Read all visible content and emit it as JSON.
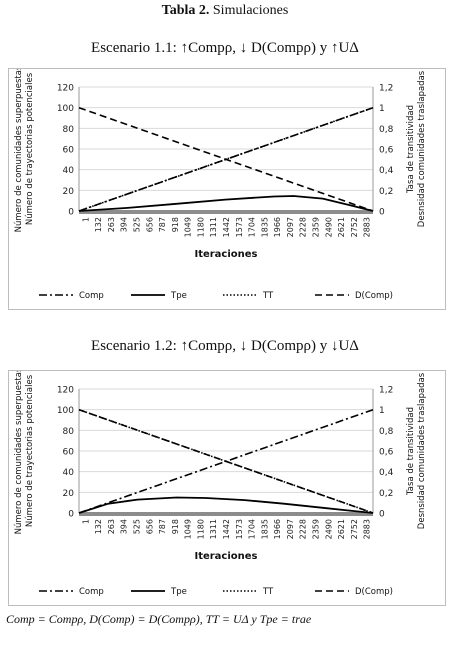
{
  "document": {
    "table_label": "Tabla 2.",
    "table_title": "Simulaciones",
    "footnote": "Comp = Compρ, D(Comp) = D(Compρ), TT = UΔ y Tpe = trae"
  },
  "scenarios": [
    {
      "title": "Escenario 1.1: ↑Compρ, ↓ D(Compρ) y ↑UΔ"
    },
    {
      "title": "Escenario 1.2: ↑Compρ, ↓ D(Compρ) y ↓UΔ"
    }
  ],
  "chart_data": [
    {
      "type": "line",
      "xlabel": "Iteraciones",
      "ylabel_left": [
        "Número de comunidades superpuestas",
        "Número de trayectorias potenciales"
      ],
      "ylabel_right": [
        "Tasa de transitividad",
        "Desnsidad comunidades traslapadas"
      ],
      "ylim_left": [
        0,
        120
      ],
      "yticks_left": [
        "0",
        "20",
        "40",
        "60",
        "80",
        "100",
        "120"
      ],
      "ylim_right": [
        0,
        1.2
      ],
      "yticks_right": [
        "0",
        "0,2",
        "0,4",
        "0,6",
        "0,8",
        "1",
        "1,2"
      ],
      "xlim": [
        1,
        3014
      ],
      "xticks": [
        "1",
        "132",
        "263",
        "394",
        "525",
        "656",
        "787",
        "918",
        "1049",
        "1180",
        "1311",
        "1442",
        "1573",
        "1704",
        "1835",
        "1966",
        "2097",
        "2228",
        "2359",
        "2490",
        "2621",
        "2752",
        "2883"
      ],
      "grid": "horizontal",
      "legend_position": "bottom",
      "series": [
        {
          "name": "Comp",
          "axis": "left",
          "style": "dashdot",
          "x": [
            1,
            3014
          ],
          "y": [
            0,
            100
          ]
        },
        {
          "name": "Tpe",
          "axis": "left",
          "style": "solid",
          "x": [
            1,
            500,
            1000,
            1500,
            2000,
            2200,
            2500,
            2800,
            3014
          ],
          "y": [
            0,
            3,
            7,
            11,
            14,
            14.5,
            12,
            5,
            0
          ]
        },
        {
          "name": "TT",
          "axis": "right",
          "style": "dotted",
          "x": [
            1,
            3014
          ],
          "y": [
            0,
            1.0
          ]
        },
        {
          "name": "D(Comp)",
          "axis": "left",
          "style": "dashed",
          "x": [
            1,
            3014
          ],
          "y": [
            100,
            0
          ]
        }
      ]
    },
    {
      "type": "line",
      "xlabel": "Iteraciones",
      "ylabel_left": [
        "Número de comunidades superpuestas",
        "Número de trayectorias potenciales"
      ],
      "ylabel_right": [
        "Tasa de transitividad",
        "Desnsidad comunidades traslapadas"
      ],
      "ylim_left": [
        0,
        120
      ],
      "yticks_left": [
        "0",
        "20",
        "40",
        "60",
        "80",
        "100",
        "120"
      ],
      "ylim_right": [
        0,
        1.2
      ],
      "yticks_right": [
        "0",
        "0,2",
        "0,4",
        "0,6",
        "0,8",
        "1",
        "1,2"
      ],
      "xlim": [
        1,
        3014
      ],
      "xticks": [
        "1",
        "132",
        "263",
        "394",
        "525",
        "656",
        "787",
        "918",
        "1049",
        "1180",
        "1311",
        "1442",
        "1573",
        "1704",
        "1835",
        "1966",
        "2097",
        "2228",
        "2359",
        "2490",
        "2621",
        "2752",
        "2883"
      ],
      "grid": "horizontal",
      "legend_position": "bottom",
      "series": [
        {
          "name": "Comp",
          "axis": "left",
          "style": "dashdot",
          "x": [
            1,
            3014
          ],
          "y": [
            0,
            100
          ]
        },
        {
          "name": "Tpe",
          "axis": "left",
          "style": "solid",
          "x": [
            1,
            300,
            600,
            1000,
            1300,
            1700,
            2100,
            2500,
            2800,
            3014
          ],
          "y": [
            0,
            9,
            13,
            15,
            14.5,
            12.5,
            9,
            5,
            2,
            0
          ]
        },
        {
          "name": "TT",
          "axis": "right",
          "style": "dotted",
          "x": [
            1,
            3014
          ],
          "y": [
            1.0,
            0
          ]
        },
        {
          "name": "D(Comp)",
          "axis": "left",
          "style": "dashed",
          "x": [
            1,
            3014
          ],
          "y": [
            100,
            0
          ]
        }
      ]
    }
  ]
}
